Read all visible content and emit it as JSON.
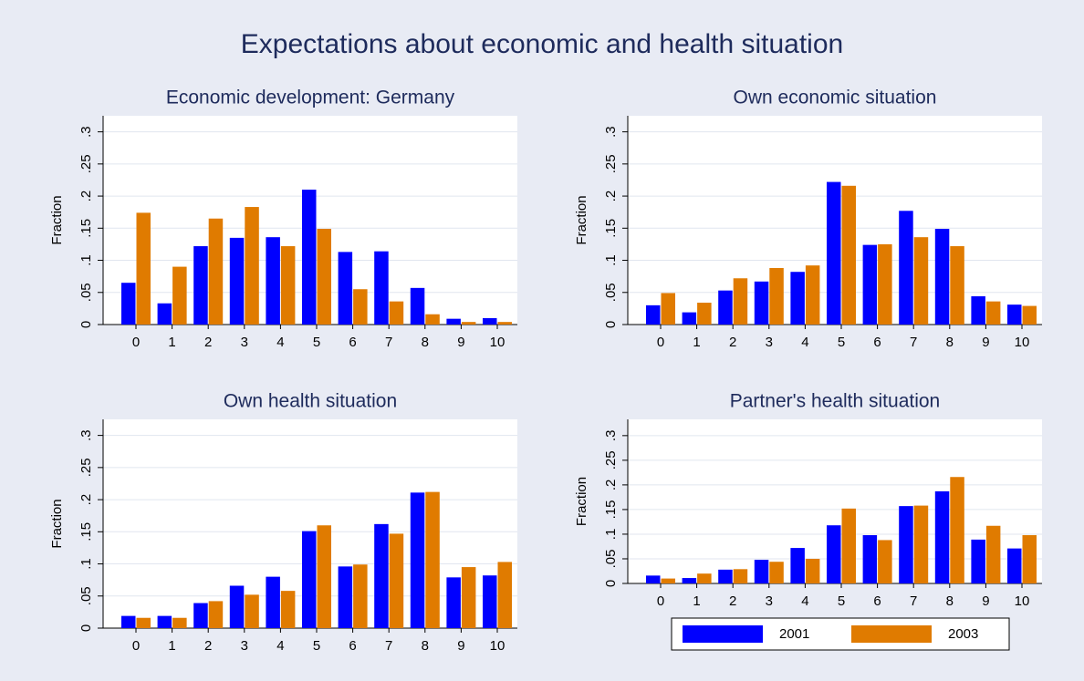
{
  "title": "Expectations about economic and health situation",
  "chart_data": [
    {
      "type": "bar",
      "title": "Economic development: Germany",
      "ylabel": "Fraction",
      "categories": [
        "0",
        "1",
        "2",
        "3",
        "4",
        "5",
        "6",
        "7",
        "8",
        "9",
        "10"
      ],
      "series": [
        {
          "color": "#0000ff",
          "values": [
            0.065,
            0.033,
            0.122,
            0.135,
            0.136,
            0.21,
            0.113,
            0.114,
            0.057,
            0.009,
            0.01
          ]
        },
        {
          "color": "#e07b00",
          "values": [
            0.174,
            0.09,
            0.165,
            0.183,
            0.122,
            0.149,
            0.055,
            0.036,
            0.016,
            0.004,
            0.004
          ]
        }
      ],
      "ylim": [
        0,
        0.325
      ],
      "yticks": [
        0,
        {
          "value": 0.05,
          "label": ".05"
        },
        {
          "value": 0.1,
          "label": ".1"
        },
        {
          "value": 0.15,
          "label": ".15"
        },
        {
          "value": 0.2,
          "label": ".2"
        },
        {
          "value": 0.25,
          "label": ".25"
        },
        {
          "value": 0.3,
          "label": ".3"
        }
      ],
      "grid": true
    },
    {
      "type": "bar",
      "title": "Own economic situation",
      "ylabel": "Fraction",
      "categories": [
        "0",
        "1",
        "2",
        "3",
        "4",
        "5",
        "6",
        "7",
        "8",
        "9",
        "10"
      ],
      "series": [
        {
          "color": "#0000ff",
          "values": [
            0.03,
            0.019,
            0.053,
            0.067,
            0.082,
            0.222,
            0.124,
            0.177,
            0.149,
            0.044,
            0.031
          ]
        },
        {
          "color": "#e07b00",
          "values": [
            0.049,
            0.034,
            0.072,
            0.088,
            0.092,
            0.216,
            0.125,
            0.136,
            0.122,
            0.036,
            0.029
          ]
        }
      ],
      "ylim": [
        0,
        0.325
      ],
      "yticks": [
        0,
        {
          "value": 0.05,
          "label": ".05"
        },
        {
          "value": 0.1,
          "label": ".1"
        },
        {
          "value": 0.15,
          "label": ".15"
        },
        {
          "value": 0.2,
          "label": ".2"
        },
        {
          "value": 0.25,
          "label": ".25"
        },
        {
          "value": 0.3,
          "label": ".3"
        }
      ],
      "grid": true
    },
    {
      "type": "bar",
      "title": "Own health situation",
      "ylabel": "Fraction",
      "categories": [
        "0",
        "1",
        "2",
        "3",
        "4",
        "5",
        "6",
        "7",
        "8",
        "9",
        "10"
      ],
      "series": [
        {
          "color": "#0000ff",
          "values": [
            0.019,
            0.019,
            0.039,
            0.066,
            0.08,
            0.151,
            0.096,
            0.162,
            0.211,
            0.079,
            0.082
          ]
        },
        {
          "color": "#e07b00",
          "values": [
            0.016,
            0.016,
            0.042,
            0.052,
            0.058,
            0.16,
            0.099,
            0.147,
            0.212,
            0.095,
            0.103
          ]
        }
      ],
      "ylim": [
        0,
        0.325
      ],
      "yticks": [
        0,
        {
          "value": 0.05,
          "label": ".05"
        },
        {
          "value": 0.1,
          "label": ".1"
        },
        {
          "value": 0.15,
          "label": ".15"
        },
        {
          "value": 0.2,
          "label": ".2"
        },
        {
          "value": 0.25,
          "label": ".25"
        },
        {
          "value": 0.3,
          "label": ".3"
        }
      ],
      "grid": true
    },
    {
      "type": "bar",
      "title": "Partner's health situation",
      "ylabel": "Fraction",
      "categories": [
        "0",
        "1",
        "2",
        "3",
        "4",
        "5",
        "6",
        "7",
        "8",
        "9",
        "10"
      ],
      "series": [
        {
          "name": "2001",
          "color": "#0000ff",
          "values": [
            0.016,
            0.011,
            0.028,
            0.048,
            0.072,
            0.118,
            0.098,
            0.157,
            0.187,
            0.089,
            0.071
          ]
        },
        {
          "name": "2003",
          "color": "#e07b00",
          "values": [
            0.01,
            0.02,
            0.029,
            0.044,
            0.05,
            0.152,
            0.088,
            0.158,
            0.216,
            0.117,
            0.098
          ]
        }
      ],
      "ylim": [
        0,
        0.333
      ],
      "yticks": [
        0,
        {
          "value": 0.05,
          "label": ".05"
        },
        {
          "value": 0.1,
          "label": ".1"
        },
        {
          "value": 0.15,
          "label": ".15"
        },
        {
          "value": 0.2,
          "label": ".2"
        },
        {
          "value": 0.25,
          "label": ".25"
        },
        {
          "value": 0.3,
          "label": ".3"
        }
      ],
      "grid": true,
      "legend": "bottom"
    }
  ]
}
